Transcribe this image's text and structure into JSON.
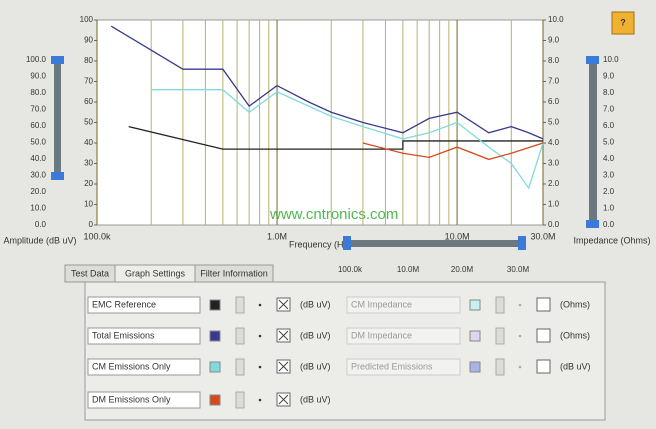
{
  "chart_data": {
    "type": "line",
    "x_label": "Frequency (Hz)",
    "log_x": true,
    "grid": true,
    "xlim": [
      0.1,
      30
    ],
    "xticks": [
      {
        "value": 0.1,
        "label": "100.0k"
      },
      {
        "value": 1,
        "label": "1.0M"
      },
      {
        "value": 10,
        "label": "10.0M"
      },
      {
        "value": 30,
        "label": "30.0M"
      }
    ],
    "xminor": [
      0.2,
      0.3,
      0.4,
      0.5,
      0.6,
      0.7,
      0.8,
      0.9,
      2,
      3,
      4,
      5,
      6,
      7,
      8,
      9,
      20
    ],
    "ylim": [
      0,
      100
    ],
    "yticks": [
      0,
      10,
      20,
      30,
      40,
      50,
      60,
      70,
      80,
      90,
      100
    ],
    "y2lim": [
      0,
      10
    ],
    "y2ticks": [
      {
        "value": 0,
        "label": "0.0"
      },
      {
        "value": 1,
        "label": "1.0"
      },
      {
        "value": 2,
        "label": "2.0"
      },
      {
        "value": 3,
        "label": "3.0"
      },
      {
        "value": 4,
        "label": "4.0"
      },
      {
        "value": 5,
        "label": "5.0"
      },
      {
        "value": 6,
        "label": "6.0"
      },
      {
        "value": 7,
        "label": "7.0"
      },
      {
        "value": 8,
        "label": "8.0"
      },
      {
        "value": 9,
        "label": "9.0"
      },
      {
        "value": 10,
        "label": "10.0"
      }
    ],
    "series": [
      {
        "name": "EMC Reference",
        "color": "#222222",
        "x": [
          0.15,
          0.5,
          5,
          5,
          30
        ],
        "values": [
          48,
          37,
          37,
          41,
          41
        ]
      },
      {
        "name": "Total Emissions",
        "color": "#3a3a8c",
        "x": [
          0.12,
          0.3,
          0.5,
          0.7,
          1,
          1.5,
          2,
          3,
          5,
          7,
          10,
          15,
          20,
          25,
          30
        ],
        "values": [
          97,
          76,
          76,
          58,
          68,
          60,
          55,
          50,
          45,
          52,
          55,
          45,
          48,
          45,
          42
        ]
      },
      {
        "name": "CM Emissions Only",
        "color": "#7fdcdc",
        "x": [
          0.2,
          0.5,
          0.7,
          1,
          1.5,
          2,
          3,
          5,
          7,
          10,
          15,
          20,
          25,
          30
        ],
        "values": [
          66,
          66,
          55,
          65,
          58,
          53,
          48,
          42,
          45,
          50,
          38,
          30,
          18,
          40
        ]
      },
      {
        "name": "DM Emissions Only",
        "color": "#d8481c",
        "x": [
          3,
          5,
          7,
          10,
          15,
          20,
          30
        ],
        "values": [
          40,
          35,
          33,
          38,
          32,
          35,
          40
        ]
      }
    ]
  },
  "amplitude_slider": {
    "title": "Amplitude (dB uV)",
    "labels": [
      "100.0",
      "90.0",
      "80.0",
      "70.0",
      "60.0",
      "50.0",
      "40.0",
      "30.0",
      "20.0",
      "10.0",
      "0.0"
    ]
  },
  "impedance_slider": {
    "title": "Impedance (Ohms)",
    "labels": [
      "10.0",
      "9.0",
      "8.0",
      "7.0",
      "6.0",
      "5.0",
      "4.0",
      "3.0",
      "2.0",
      "1.0",
      "0.0"
    ]
  },
  "frequency_slider": {
    "labels": [
      "100.0k",
      "10.0M",
      "20.0M",
      "30.0M"
    ]
  },
  "help": "?",
  "watermark": "www.cntronics.com",
  "tabs": [
    "Test Data",
    "Graph Settings",
    "Filter Information"
  ],
  "trace_units": [
    "(dB uV)",
    "(dB uV)",
    "(dB uV)",
    "(dB uV)"
  ],
  "impedance_rows": [
    {
      "name": "CM Impedance",
      "unit": "(Ohms)",
      "color": "#c8f0f0"
    },
    {
      "name": "DM Impedance",
      "unit": "(Ohms)",
      "color": "#e0d4f0"
    },
    {
      "name": "Predicted Emissions",
      "unit": "(dB uV)",
      "color": "#a8b4e8"
    }
  ]
}
